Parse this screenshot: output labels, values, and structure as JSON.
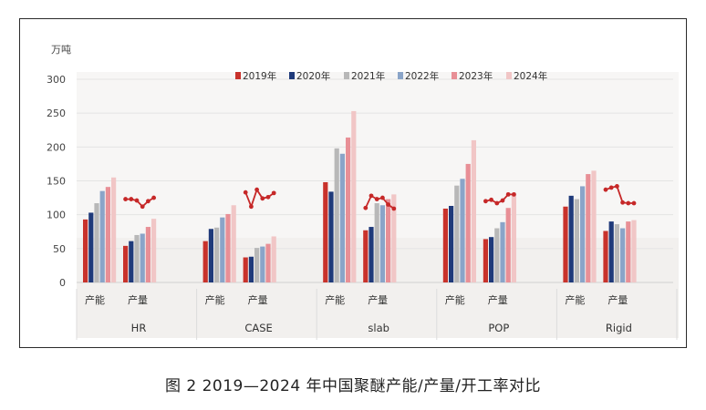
{
  "caption": "图 2  2019—2024 年中国聚醚产能/产量/开工率对比",
  "chart_data": {
    "type": "bar",
    "ylabel": "万吨",
    "ylim": [
      0,
      300
    ],
    "yticks": [
      0,
      50,
      100,
      150,
      200,
      250,
      300
    ],
    "grid": true,
    "legend_position": "top-center",
    "groups": [
      "HR",
      "CASE",
      "slab",
      "POP",
      "Rigid"
    ],
    "subcategories": [
      "产能",
      "产量"
    ],
    "series": [
      {
        "name": "2019年",
        "color": "#c8322b"
      },
      {
        "name": "2020年",
        "color": "#1f3a7a"
      },
      {
        "name": "2021年",
        "color": "#b8b8b8"
      },
      {
        "name": "2022年",
        "color": "#8aa4c8"
      },
      {
        "name": "2023年",
        "color": "#e88f96"
      },
      {
        "name": "2024年",
        "color": "#f1c6c6"
      }
    ],
    "values": {
      "HR": {
        "产能": [
          93,
          103,
          117,
          135,
          141,
          155
        ],
        "产量": [
          54,
          61,
          70,
          72,
          82,
          94
        ]
      },
      "CASE": {
        "产能": [
          61,
          79,
          81,
          96,
          101,
          114
        ],
        "产量": [
          37,
          38,
          51,
          53,
          57,
          68
        ]
      },
      "slab": {
        "产能": [
          148,
          134,
          198,
          190,
          214,
          253
        ],
        "产量": [
          77,
          82,
          117,
          114,
          123,
          130
        ]
      },
      "POP": {
        "产能": [
          109,
          113,
          143,
          153,
          175,
          210
        ],
        "产量": [
          64,
          67,
          80,
          89,
          110,
          130
        ]
      },
      "Rigid": {
        "产能": [
          112,
          128,
          123,
          142,
          160,
          165
        ],
        "产量": [
          76,
          90,
          86,
          80,
          90,
          92
        ]
      }
    },
    "operating_rate_line": {
      "color": "#c62828",
      "HR": [
        123,
        123,
        121,
        112,
        120,
        125
      ],
      "CASE": [
        133,
        112,
        137,
        124,
        126,
        132
      ],
      "slab": [
        110,
        128,
        123,
        125,
        115,
        109
      ],
      "POP": [
        120,
        122,
        117,
        121,
        130,
        130
      ],
      "Rigid": [
        137,
        140,
        142,
        118,
        117,
        117
      ]
    }
  }
}
